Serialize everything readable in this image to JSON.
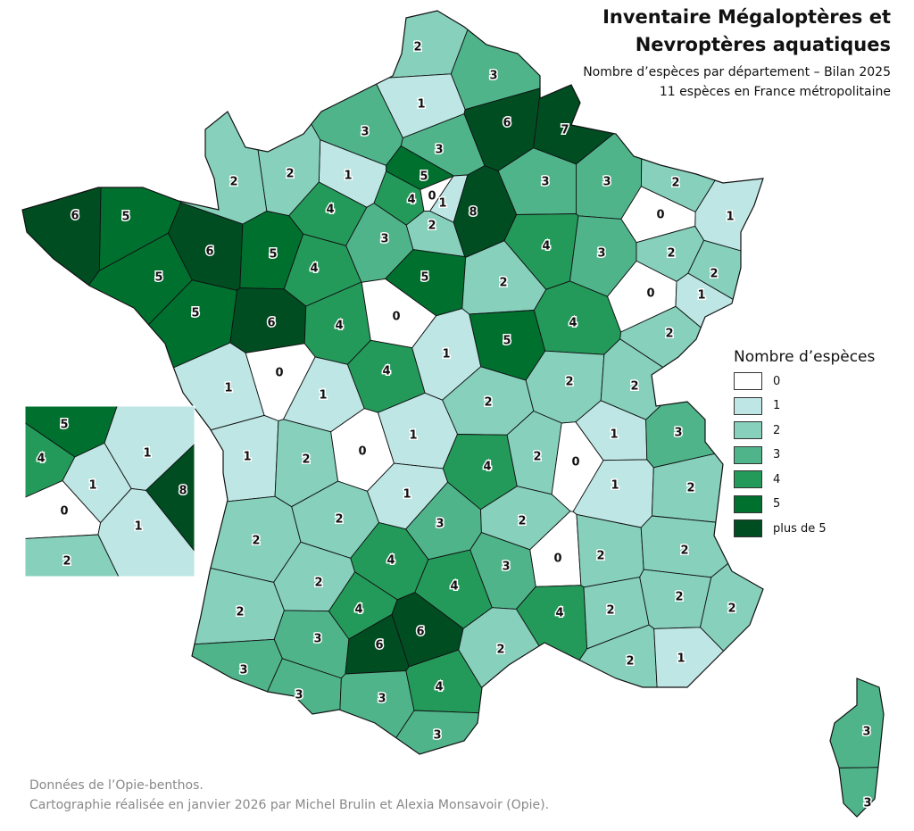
{
  "title": {
    "line1": "Inventaire Mégaloptères et",
    "line2": "Nevroptères aquatiques"
  },
  "subtitle": {
    "line1": "Nombre d’espèces par département – Bilan 2025",
    "line2": "11 espèces en France métropolitaine"
  },
  "legend": {
    "title": "Nombre d’espèces",
    "items": [
      {
        "label": "0",
        "color": "#ffffff"
      },
      {
        "label": "1",
        "color": "#bde6e4"
      },
      {
        "label": "2",
        "color": "#86d0bc"
      },
      {
        "label": "3",
        "color": "#50b48b"
      },
      {
        "label": "4",
        "color": "#249a5a"
      },
      {
        "label": "5",
        "color": "#00702f"
      },
      {
        "label": "plus de 5",
        "color": "#004d22"
      }
    ]
  },
  "departments": [
    2,
    3,
    1,
    6,
    7,
    3,
    3,
    1,
    2,
    2,
    3,
    3,
    2,
    1,
    0,
    5,
    4,
    0,
    1,
    2,
    8,
    4,
    3,
    6,
    5,
    5,
    6,
    5,
    4,
    5,
    2,
    4,
    3,
    2,
    2,
    0,
    1,
    5,
    6,
    4,
    0,
    5,
    4,
    2,
    1,
    0,
    1,
    4,
    1,
    2,
    2,
    2,
    1,
    2,
    0,
    1,
    4,
    2,
    0,
    1,
    3,
    1,
    2,
    2,
    1,
    3,
    2,
    0,
    3,
    2,
    2,
    2,
    2,
    4,
    4,
    4,
    2,
    2,
    2,
    2,
    3,
    4,
    6,
    6,
    2,
    2,
    1,
    3,
    3,
    3,
    4,
    3,
    3,
    3
  ],
  "inset_departments": [
    5,
    4,
    1,
    1,
    0,
    8,
    1,
    2
  ],
  "credits": {
    "line1": "Données de l’Opie-benthos.",
    "line2": "Cartographie réalisée en janvier 2026 par Michel Brulin et Alexia Monsavoir (Opie)."
  }
}
